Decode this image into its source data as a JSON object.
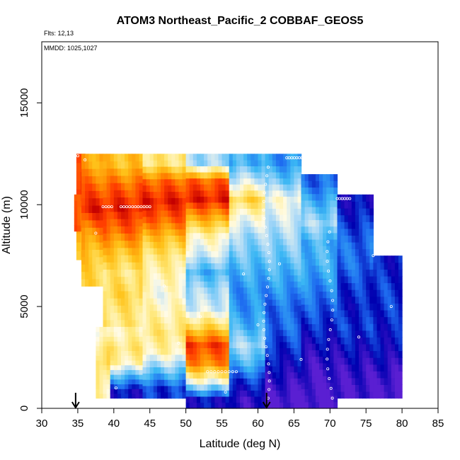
{
  "chart_data": {
    "type": "heatmap",
    "title": "ATOM3 Northeast_Pacific_2 COBBAF_GEOS5",
    "annotations": [
      "Flts: 12,13",
      "MMDD: 1025,1027"
    ],
    "xlabel": "Latitude (deg N)",
    "ylabel": "Altitude (m)",
    "xlim": [
      30,
      85
    ],
    "ylim": [
      0,
      18000
    ],
    "xticks": [
      30,
      35,
      40,
      45,
      50,
      55,
      60,
      65,
      70,
      75,
      80,
      85
    ],
    "yticks": [
      0,
      5000,
      10000,
      15000
    ],
    "grid": false,
    "legend": "none",
    "colormap": [
      "#5a1fd2",
      "#0000b0",
      "#1e6cf0",
      "#3ab6f4",
      "#a8d8f8",
      "#fffbe6",
      "#ffe87a",
      "#ffc31a",
      "#ff8a00",
      "#ff3c00",
      "#c40000"
    ],
    "arrows_at_latitude": [
      34.7,
      61.2
    ],
    "columns": [
      {
        "lat": [
          34.8,
          36.0
        ],
        "alt": [
          7300,
          12500
        ],
        "v": [
          0.65,
          0.75,
          0.95,
          0.85
        ]
      },
      {
        "lat": [
          34.5,
          35.8
        ],
        "alt": [
          8700,
          10500
        ],
        "v": [
          0.85,
          0.9
        ]
      },
      {
        "lat": [
          35.5,
          38.5
        ],
        "alt": [
          6000,
          12500
        ],
        "v": [
          0.65,
          0.7,
          0.8,
          0.95,
          0.85,
          0.75
        ]
      },
      {
        "lat": [
          38.5,
          44
        ],
        "alt": [
          4000,
          12500
        ],
        "v": [
          0.6,
          0.65,
          0.6,
          0.7,
          0.85,
          0.95,
          0.85,
          0.7
        ]
      },
      {
        "lat": [
          37.5,
          39.5
        ],
        "alt": [
          500,
          4000
        ],
        "v": [
          0.55,
          0.6,
          0.65,
          0.6,
          0.5
        ]
      },
      {
        "lat": [
          39.5,
          44
        ],
        "alt": [
          500,
          4000
        ],
        "v": [
          0.1,
          0.3,
          0.55,
          0.6,
          0.55
        ]
      },
      {
        "lat": [
          44,
          50
        ],
        "alt": [
          500,
          12500
        ],
        "v": [
          0.15,
          0.35,
          0.55,
          0.6,
          0.55,
          0.5,
          0.55,
          0.6,
          0.7,
          0.85,
          0.95,
          0.85,
          0.6
        ]
      },
      {
        "lat": [
          50,
          56
        ],
        "alt": [
          0,
          12500
        ],
        "v": [
          0.1,
          0.5,
          0.8,
          0.9,
          0.65,
          0.45,
          0.4,
          0.3,
          0.45,
          0.55,
          0.75,
          0.95,
          0.85,
          0.4
        ]
      },
      {
        "lat": [
          56,
          61
        ],
        "alt": [
          0,
          12500
        ],
        "v": [
          0.05,
          0.15,
          0.3,
          0.4,
          0.3,
          0.25,
          0.25,
          0.3,
          0.35,
          0.4,
          0.5,
          0.65,
          0.45,
          0.3
        ]
      },
      {
        "lat": [
          61,
          66
        ],
        "alt": [
          0,
          12500
        ],
        "v": [
          0.0,
          0.05,
          0.1,
          0.15,
          0.2,
          0.2,
          0.25,
          0.3,
          0.35,
          0.4,
          0.45,
          0.5,
          0.35,
          0.25
        ]
      },
      {
        "lat": [
          66,
          71
        ],
        "alt": [
          0,
          11500
        ],
        "v": [
          0.0,
          0.02,
          0.05,
          0.1,
          0.15,
          0.2,
          0.25,
          0.3,
          0.3,
          0.4,
          0.3,
          0.2
        ]
      },
      {
        "lat": [
          71,
          76
        ],
        "alt": [
          500,
          10500
        ],
        "v": [
          0.02,
          0.05,
          0.1,
          0.15,
          0.12,
          0.15,
          0.2,
          0.2,
          0.15,
          0.1
        ]
      },
      {
        "lat": [
          76,
          80
        ],
        "alt": [
          500,
          7500
        ],
        "v": [
          0.0,
          0.05,
          0.1,
          0.12,
          0.15,
          0.15,
          0.12
        ]
      }
    ]
  }
}
